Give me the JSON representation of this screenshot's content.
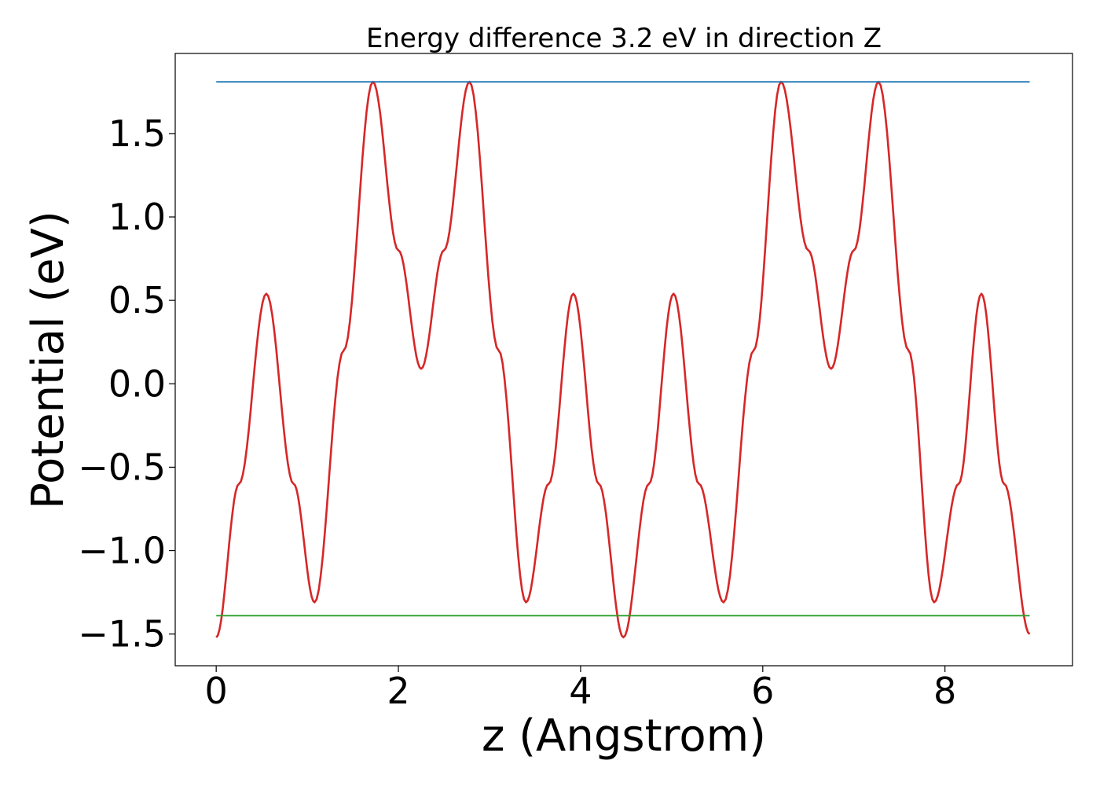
{
  "chart_data": {
    "type": "line",
    "title": "Energy difference 3.2 eV in direction Z",
    "xlabel": "z (Angstrom)",
    "ylabel": "Potential (eV)",
    "xlim": [
      -0.45,
      9.4
    ],
    "ylim": [
      -1.69,
      1.98
    ],
    "x_ticks": [
      0,
      2,
      4,
      6,
      8
    ],
    "x_tick_labels": [
      "0",
      "2",
      "4",
      "6",
      "8"
    ],
    "y_ticks": [
      1.5,
      1.0,
      0.5,
      0.0,
      -0.5,
      -1.0,
      -1.5
    ],
    "y_tick_labels": [
      "1.5",
      "1.0",
      "0.5",
      "0.0",
      "−0.5",
      "−1.0",
      "−1.5"
    ],
    "grid": false,
    "legend": "none",
    "series": [
      {
        "color": "#d62728",
        "x": [
          0.0,
          0.25,
          0.55,
          0.85,
          1.08,
          1.4,
          1.72,
          2.0,
          2.25,
          2.5,
          2.78,
          3.1,
          3.4,
          3.65,
          3.92,
          4.2,
          4.47,
          4.75,
          5.02,
          5.3,
          5.57,
          5.9,
          6.2,
          6.5,
          6.75,
          7.0,
          7.27,
          7.6,
          7.88,
          8.15,
          8.4,
          8.65,
          8.93
        ],
        "y": [
          -1.52,
          -0.6,
          0.54,
          -0.6,
          -1.31,
          0.2,
          1.81,
          0.8,
          0.09,
          0.8,
          1.81,
          0.2,
          -1.31,
          -0.6,
          0.54,
          -0.6,
          -1.52,
          -0.6,
          0.54,
          -0.6,
          -1.31,
          0.2,
          1.81,
          0.8,
          0.09,
          0.8,
          1.81,
          0.2,
          -1.31,
          -0.6,
          0.54,
          -0.6,
          -1.5
        ]
      },
      {
        "color": "#1f77b4",
        "x": [
          0.0,
          8.93
        ],
        "y": [
          1.81,
          1.81
        ]
      },
      {
        "color": "#2ca02c",
        "x": [
          0.0,
          8.93
        ],
        "y": [
          -1.39,
          -1.39
        ]
      }
    ]
  }
}
